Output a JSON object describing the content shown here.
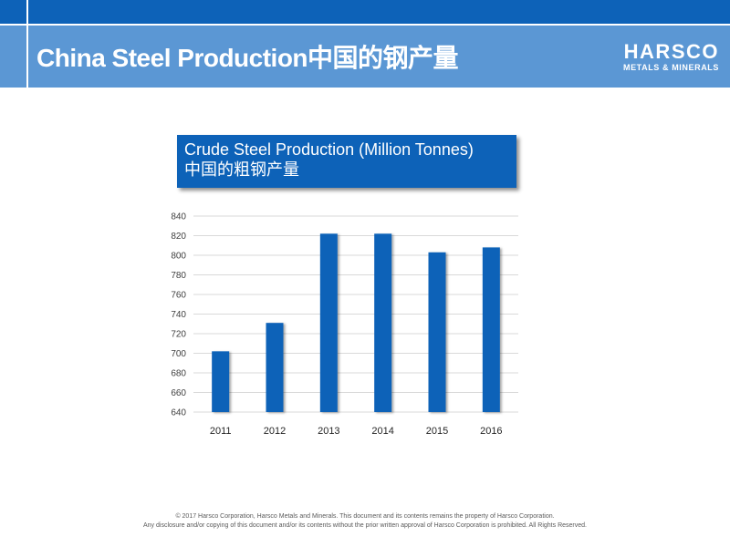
{
  "slide": {
    "title": "China Steel Production中国的钢产量"
  },
  "logo": {
    "name": "HARSCO",
    "subtitle": "METALS & MINERALS"
  },
  "chart_title": {
    "line1": "Crude Steel Production (Million Tonnes)",
    "line2": "中国的粗钢产量"
  },
  "chart_data": {
    "type": "bar",
    "title": "Crude Steel Production (Million Tonnes) 中国的粗钢产量",
    "categories": [
      "2011",
      "2012",
      "2013",
      "2014",
      "2015",
      "2016"
    ],
    "values": [
      702,
      731,
      822,
      822,
      803,
      808
    ],
    "yticks": [
      "640",
      "660",
      "680",
      "700",
      "720",
      "740",
      "760",
      "780",
      "800",
      "820",
      "840"
    ],
    "ylim": [
      640,
      840
    ],
    "grid": true,
    "legend": "none",
    "bar_color": "#0d62b8"
  },
  "footer": {
    "line1": "© 2017 Harsco Corporation, Harsco Metals and Minerals.   This document and its contents remains the property of Harsco Corporation.",
    "line2": "Any disclosure and/or copying of this document and/or its contents without the prior written approval of Harsco Corporation is prohibited.  All Rights Reserved."
  }
}
